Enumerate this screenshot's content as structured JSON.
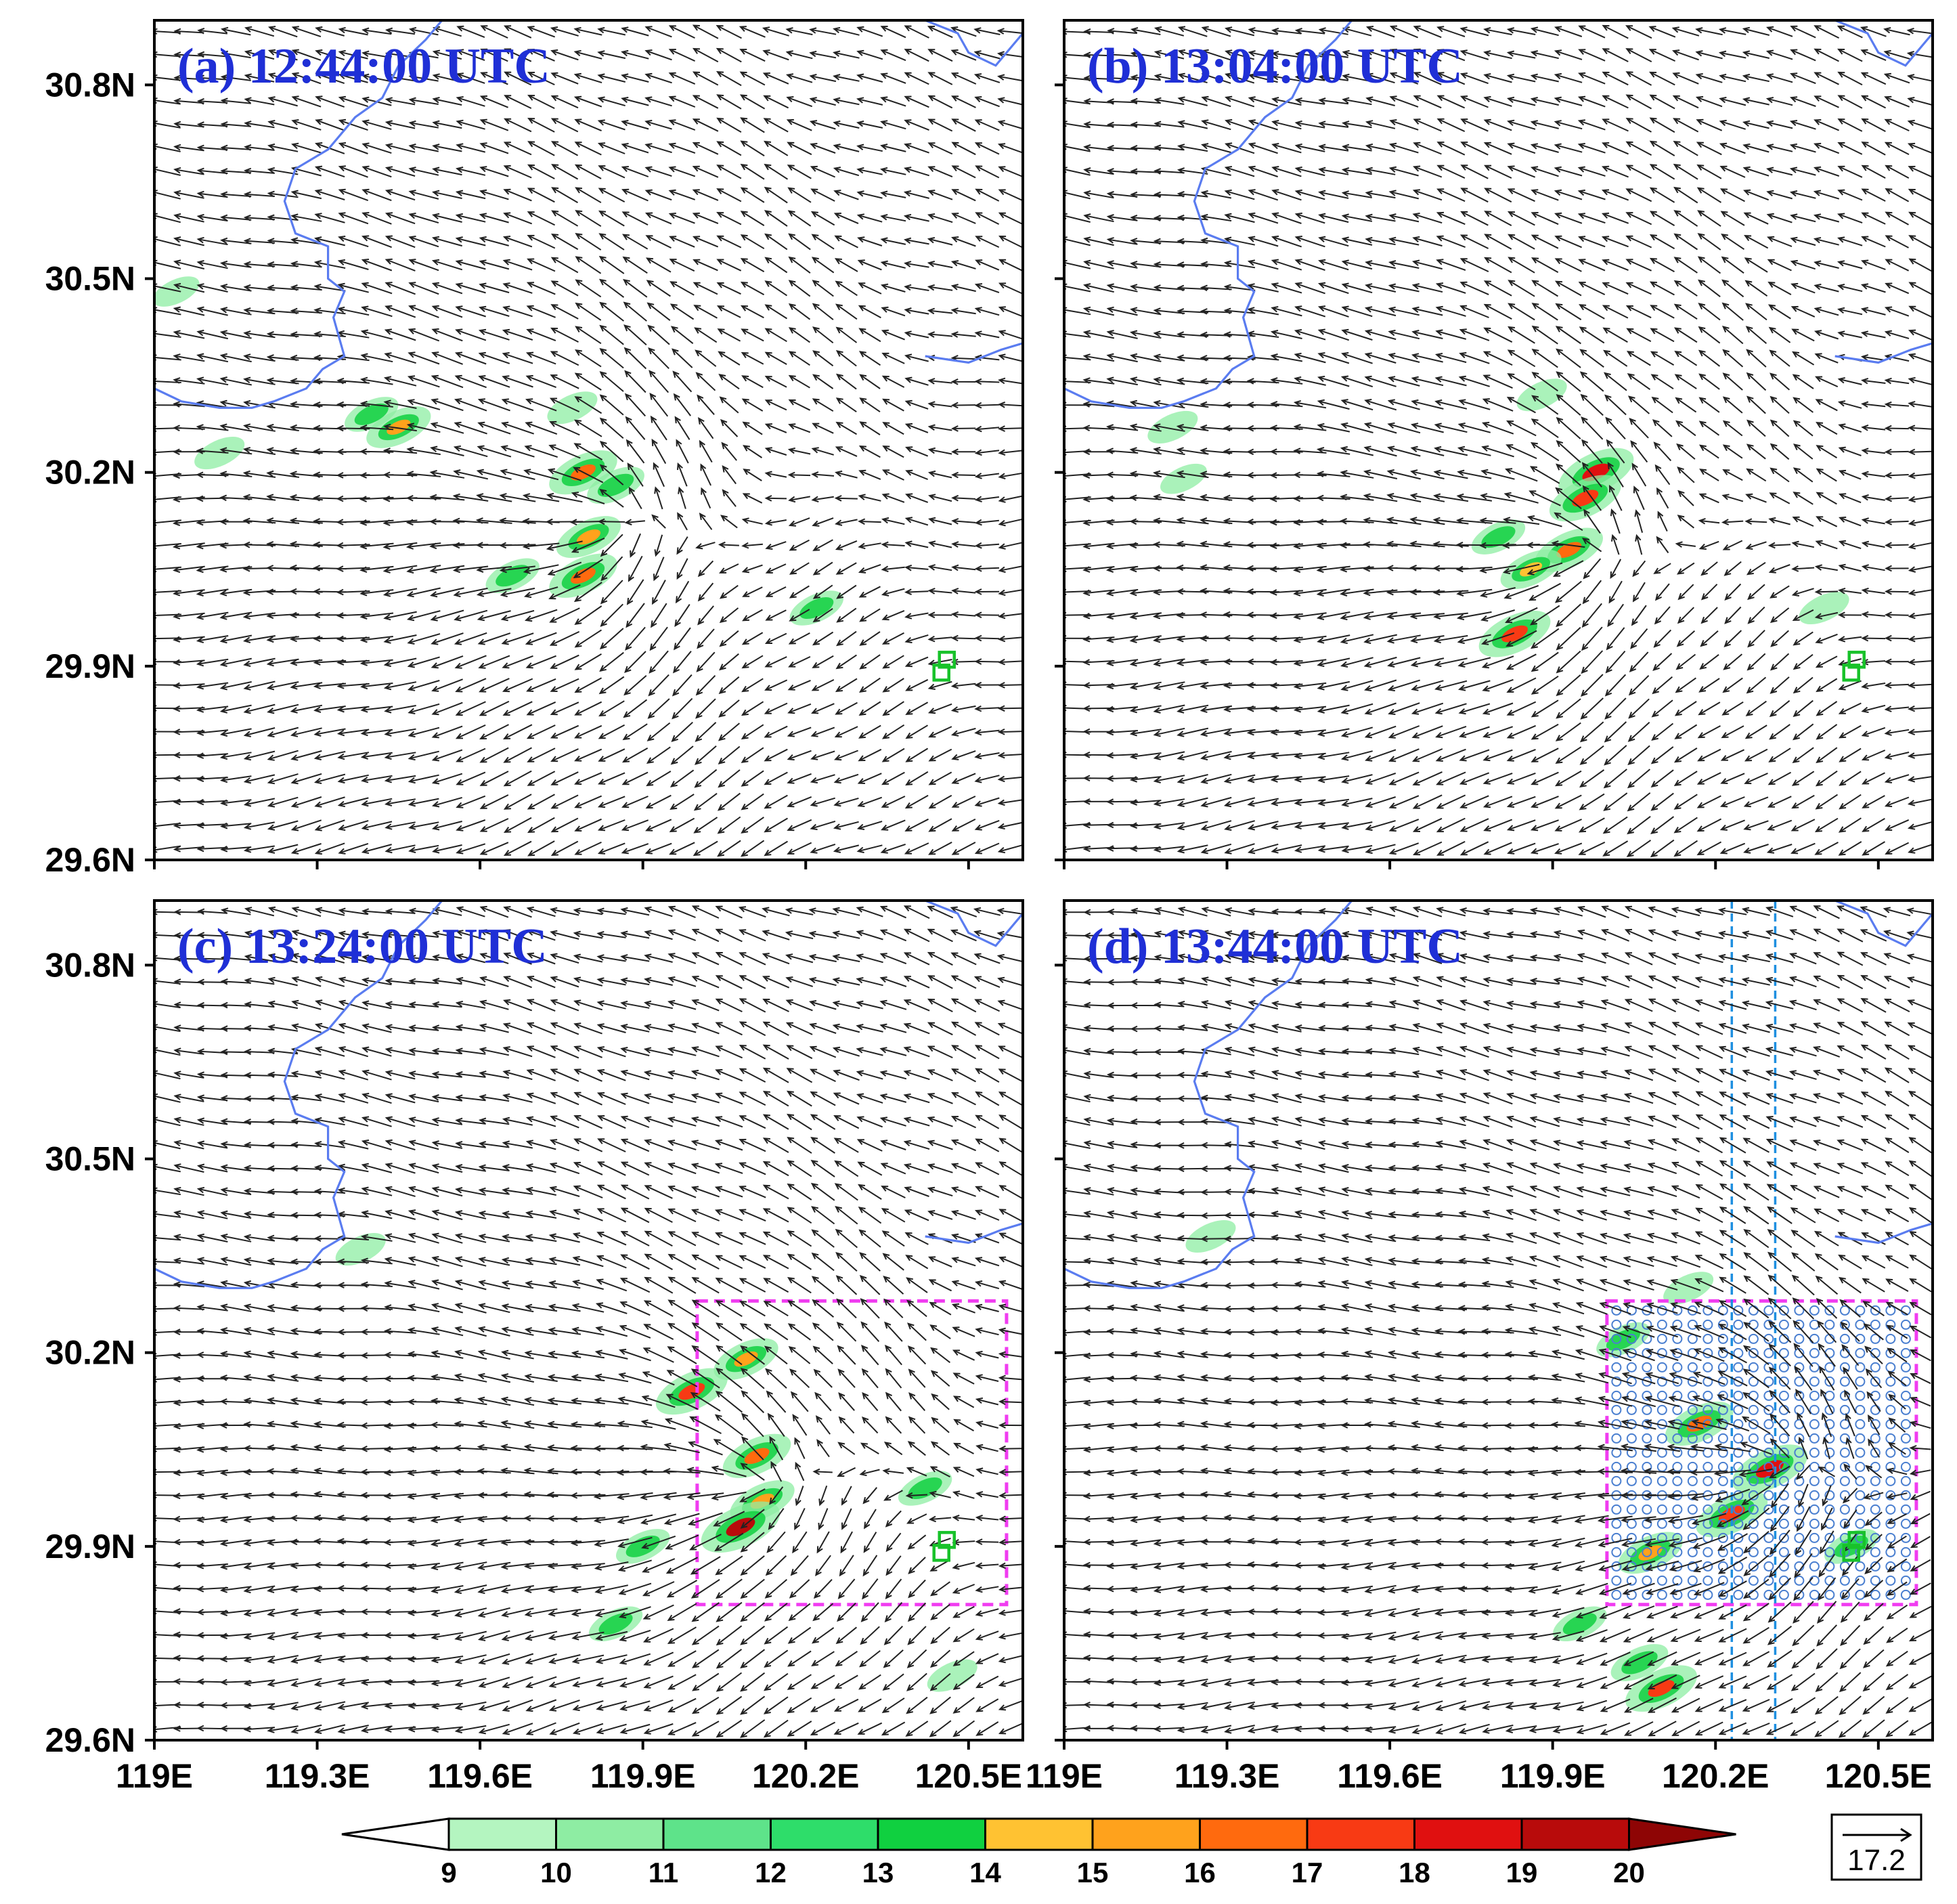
{
  "chart_data": [
    {
      "type": "map",
      "panel": "a",
      "title": "(a) 12:44:00 UTC",
      "xlim": [
        119.0,
        120.6
      ],
      "ylim": [
        29.6,
        30.9
      ],
      "x_ticks": [
        "119E",
        "119.3E",
        "119.6E",
        "119.9E",
        "120.2E",
        "120.5E"
      ],
      "x_tick_values": [
        119.0,
        119.3,
        119.6,
        119.9,
        120.2,
        120.5
      ],
      "y_ticks": [
        "29.6N",
        "29.9N",
        "30.2N",
        "30.5N",
        "30.8N"
      ],
      "y_tick_values": [
        29.6,
        29.9,
        30.2,
        30.5,
        30.8
      ],
      "storm_center": [
        119.84,
        30.12
      ],
      "station_markers": [
        [
          120.45,
          29.89
        ],
        [
          120.46,
          29.91
        ]
      ],
      "shaded_cells": [
        {
          "lon": 119.4,
          "lat": 30.29,
          "value": 12
        },
        {
          "lon": 119.45,
          "lat": 30.27,
          "value": 15
        },
        {
          "lon": 119.12,
          "lat": 30.23,
          "value": 11
        },
        {
          "lon": 119.79,
          "lat": 30.2,
          "value": 16
        },
        {
          "lon": 119.85,
          "lat": 30.18,
          "value": 13
        },
        {
          "lon": 119.8,
          "lat": 30.1,
          "value": 15
        },
        {
          "lon": 119.79,
          "lat": 30.04,
          "value": 16
        },
        {
          "lon": 119.66,
          "lat": 30.04,
          "value": 12
        },
        {
          "lon": 119.77,
          "lat": 30.3,
          "value": 11
        },
        {
          "lon": 120.22,
          "lat": 29.99,
          "value": 12
        },
        {
          "lon": 119.04,
          "lat": 30.48,
          "value": 10
        }
      ]
    },
    {
      "type": "map",
      "panel": "b",
      "title": "(b) 13:04:00 UTC",
      "xlim": [
        119.0,
        120.6
      ],
      "ylim": [
        29.6,
        30.9
      ],
      "x_ticks": [
        "119E",
        "119.3E",
        "119.6E",
        "119.9E",
        "120.2E",
        "120.5E"
      ],
      "x_tick_values": [
        119.0,
        119.3,
        119.6,
        119.9,
        120.2,
        120.5
      ],
      "y_ticks": [
        "29.6N",
        "29.9N",
        "30.2N",
        "30.5N",
        "30.8N"
      ],
      "y_tick_values": [
        29.6,
        29.9,
        30.2,
        30.5,
        30.8
      ],
      "storm_center": [
        119.95,
        30.08
      ],
      "station_markers": [
        [
          120.45,
          29.89
        ],
        [
          120.46,
          29.91
        ]
      ],
      "shaded_cells": [
        {
          "lon": 119.98,
          "lat": 30.2,
          "value": 18
        },
        {
          "lon": 119.96,
          "lat": 30.16,
          "value": 17
        },
        {
          "lon": 119.93,
          "lat": 30.08,
          "value": 16
        },
        {
          "lon": 119.86,
          "lat": 30.05,
          "value": 14
        },
        {
          "lon": 119.8,
          "lat": 30.1,
          "value": 12
        },
        {
          "lon": 119.83,
          "lat": 29.95,
          "value": 17
        },
        {
          "lon": 119.88,
          "lat": 30.32,
          "value": 11
        },
        {
          "lon": 120.4,
          "lat": 29.99,
          "value": 11
        },
        {
          "lon": 119.2,
          "lat": 30.27,
          "value": 11
        },
        {
          "lon": 119.22,
          "lat": 30.19,
          "value": 10
        }
      ]
    },
    {
      "type": "map",
      "panel": "c",
      "title": "(c) 13:24:00 UTC",
      "xlim": [
        119.0,
        120.6
      ],
      "ylim": [
        29.6,
        30.9
      ],
      "x_ticks": [
        "119E",
        "119.3E",
        "119.6E",
        "119.9E",
        "120.2E",
        "120.5E"
      ],
      "x_tick_values": [
        119.0,
        119.3,
        119.6,
        119.9,
        120.2,
        120.5
      ],
      "y_ticks": [
        "29.6N",
        "29.9N",
        "30.2N",
        "30.5N",
        "30.8N"
      ],
      "y_tick_values": [
        29.6,
        29.9,
        30.2,
        30.5,
        30.8
      ],
      "storm_center": [
        120.1,
        30.0
      ],
      "station_markers": [
        [
          120.45,
          29.89
        ],
        [
          120.46,
          29.91
        ]
      ],
      "box": {
        "lon": [
          120.0,
          120.57
        ],
        "lat": [
          29.81,
          30.28
        ]
      },
      "shaded_cells": [
        {
          "lon": 120.09,
          "lat": 30.19,
          "value": 15
        },
        {
          "lon": 119.99,
          "lat": 30.14,
          "value": 17
        },
        {
          "lon": 120.11,
          "lat": 30.04,
          "value": 16
        },
        {
          "lon": 120.12,
          "lat": 29.97,
          "value": 15
        },
        {
          "lon": 120.08,
          "lat": 29.93,
          "value": 19
        },
        {
          "lon": 119.9,
          "lat": 29.9,
          "value": 12
        },
        {
          "lon": 119.85,
          "lat": 29.78,
          "value": 12
        },
        {
          "lon": 120.42,
          "lat": 29.99,
          "value": 12
        },
        {
          "lon": 120.47,
          "lat": 29.7,
          "value": 11
        },
        {
          "lon": 119.38,
          "lat": 30.36,
          "value": 11
        }
      ]
    },
    {
      "type": "map",
      "panel": "d",
      "title": "(d) 13:44:00 UTC",
      "xlim": [
        119.0,
        120.6
      ],
      "ylim": [
        29.6,
        30.9
      ],
      "x_ticks": [
        "119E",
        "119.3E",
        "119.6E",
        "119.9E",
        "120.2E",
        "120.5E"
      ],
      "x_tick_values": [
        119.0,
        119.3,
        119.6,
        119.9,
        120.2,
        120.5
      ],
      "y_ticks": [
        "29.6N",
        "29.9N",
        "30.2N",
        "30.5N",
        "30.8N"
      ],
      "y_tick_values": [
        29.6,
        29.9,
        30.2,
        30.5,
        30.8
      ],
      "storm_center": [
        120.3,
        30.02
      ],
      "station_markers": [
        [
          120.45,
          29.89
        ],
        [
          120.46,
          29.91
        ]
      ],
      "box": {
        "lon": [
          120.0,
          120.57
        ],
        "lat": [
          29.81,
          30.28
        ]
      },
      "vertical_lines": [
        120.23,
        120.31
      ],
      "shaded_cells": [
        {
          "lon": 120.3,
          "lat": 30.02,
          "value": 18
        },
        {
          "lon": 120.23,
          "lat": 29.95,
          "value": 17
        },
        {
          "lon": 120.17,
          "lat": 30.09,
          "value": 16
        },
        {
          "lon": 120.08,
          "lat": 29.89,
          "value": 15
        },
        {
          "lon": 120.1,
          "lat": 29.68,
          "value": 17
        },
        {
          "lon": 120.06,
          "lat": 29.72,
          "value": 13
        },
        {
          "lon": 119.95,
          "lat": 29.78,
          "value": 12
        },
        {
          "lon": 120.03,
          "lat": 30.22,
          "value": 12
        },
        {
          "lon": 120.15,
          "lat": 30.3,
          "value": 11
        },
        {
          "lon": 120.45,
          "lat": 29.9,
          "value": 12
        },
        {
          "lon": 119.27,
          "lat": 30.38,
          "value": 11
        }
      ]
    }
  ],
  "colorbar": {
    "ticks": [
      "9",
      "10",
      "11",
      "12",
      "13",
      "14",
      "15",
      "16",
      "17",
      "18",
      "19",
      "20"
    ],
    "colors": [
      "#ffffff",
      "#b4f5c0",
      "#8eeda3",
      "#5ee38a",
      "#2edd6a",
      "#10d040",
      "#ffc232",
      "#ffa21c",
      "#ff6a0e",
      "#f83a14",
      "#e01010",
      "#b80b0b",
      "#8e0505"
    ]
  },
  "reference_vector": {
    "label": "17.2",
    "value": 17.2
  }
}
